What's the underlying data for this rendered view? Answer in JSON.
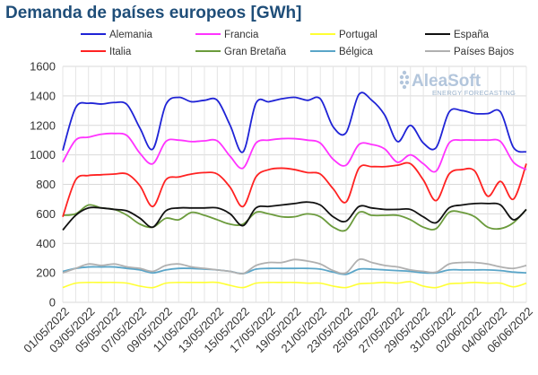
{
  "chart_data": {
    "type": "line",
    "title": "Demanda de países europeos [GWh]",
    "xlabel": "",
    "ylabel": "",
    "ylim": [
      0,
      1600
    ],
    "yticks": [
      0,
      200,
      400,
      600,
      800,
      1000,
      1200,
      1400,
      1600
    ],
    "grid": true,
    "legend_position": "top",
    "x": [
      "01/05/2022",
      "02/05/2022",
      "03/05/2022",
      "04/05/2022",
      "05/05/2022",
      "06/05/2022",
      "07/05/2022",
      "08/05/2022",
      "09/05/2022",
      "10/05/2022",
      "11/05/2022",
      "12/05/2022",
      "13/05/2022",
      "14/05/2022",
      "15/05/2022",
      "16/05/2022",
      "17/05/2022",
      "18/05/2022",
      "19/05/2022",
      "20/05/2022",
      "21/05/2022",
      "22/05/2022",
      "23/05/2022",
      "24/05/2022",
      "25/05/2022",
      "26/05/2022",
      "27/05/2022",
      "28/05/2022",
      "29/05/2022",
      "30/05/2022",
      "31/05/2022",
      "01/06/2022",
      "02/06/2022",
      "03/06/2022",
      "04/06/2022",
      "05/06/2022",
      "06/06/2022"
    ],
    "x_tick_labels": [
      "01/05/2022",
      "03/05/2022",
      "05/05/2022",
      "07/05/2022",
      "09/05/2022",
      "11/05/2022",
      "13/05/2022",
      "15/05/2022",
      "17/05/2022",
      "19/05/2022",
      "21/05/2022",
      "23/05/2022",
      "25/05/2022",
      "27/05/2022",
      "29/05/2022",
      "31/05/2022",
      "02/06/2022",
      "04/06/2022",
      "06/06/2022"
    ],
    "series": [
      {
        "name": "Alemania",
        "color": "#1f23d6",
        "values": [
          1030,
          1320,
          1350,
          1345,
          1355,
          1340,
          1180,
          1040,
          1340,
          1390,
          1360,
          1370,
          1370,
          1200,
          1020,
          1350,
          1360,
          1380,
          1390,
          1370,
          1380,
          1190,
          1150,
          1410,
          1370,
          1270,
          1090,
          1200,
          1080,
          1050,
          1290,
          1300,
          1280,
          1280,
          1290,
          1050,
          1020
        ]
      },
      {
        "name": "Francia",
        "color": "#ff33ff",
        "values": [
          950,
          1100,
          1120,
          1140,
          1145,
          1130,
          1010,
          940,
          1090,
          1100,
          1090,
          1095,
          1095,
          990,
          910,
          1080,
          1100,
          1110,
          1110,
          1100,
          1080,
          970,
          930,
          1070,
          1070,
          1040,
          950,
          1000,
          940,
          890,
          1080,
          1100,
          1100,
          1100,
          1090,
          950,
          900
        ]
      },
      {
        "name": "Portugal",
        "color": "#ffff33",
        "values": [
          100,
          130,
          135,
          135,
          135,
          130,
          110,
          100,
          130,
          135,
          135,
          135,
          135,
          115,
          100,
          130,
          135,
          135,
          135,
          130,
          130,
          110,
          100,
          125,
          130,
          135,
          130,
          140,
          110,
          100,
          125,
          130,
          135,
          130,
          130,
          105,
          130
        ]
      },
      {
        "name": "España",
        "color": "#111111",
        "values": [
          490,
          590,
          640,
          640,
          630,
          620,
          570,
          510,
          620,
          640,
          640,
          640,
          640,
          600,
          520,
          640,
          650,
          660,
          670,
          680,
          660,
          580,
          550,
          650,
          640,
          630,
          630,
          630,
          580,
          540,
          640,
          660,
          670,
          670,
          660,
          560,
          630
        ]
      },
      {
        "name": "Italia",
        "color": "#ff2222",
        "values": [
          580,
          830,
          860,
          865,
          870,
          870,
          790,
          650,
          830,
          850,
          870,
          880,
          870,
          780,
          650,
          850,
          900,
          910,
          900,
          880,
          870,
          770,
          680,
          910,
          920,
          920,
          930,
          940,
          830,
          690,
          870,
          900,
          890,
          720,
          820,
          700,
          940
        ]
      },
      {
        "name": "Gran Bretaña",
        "color": "#6b9b3c",
        "values": [
          590,
          600,
          660,
          640,
          630,
          590,
          530,
          510,
          570,
          560,
          610,
          590,
          560,
          530,
          530,
          610,
          600,
          580,
          580,
          600,
          580,
          510,
          490,
          610,
          590,
          590,
          590,
          560,
          510,
          500,
          610,
          610,
          580,
          510,
          500,
          540,
          630
        ]
      },
      {
        "name": "Bélgica",
        "color": "#5aa5c8",
        "values": [
          210,
          230,
          240,
          240,
          240,
          230,
          220,
          200,
          220,
          230,
          230,
          225,
          220,
          210,
          195,
          225,
          230,
          230,
          230,
          230,
          225,
          205,
          190,
          225,
          225,
          220,
          215,
          210,
          200,
          200,
          220,
          220,
          220,
          220,
          215,
          205,
          200
        ]
      },
      {
        "name": "Países Bajos",
        "color": "#b0b0b0",
        "values": [
          200,
          230,
          260,
          250,
          260,
          240,
          230,
          210,
          250,
          260,
          240,
          230,
          220,
          210,
          195,
          250,
          270,
          270,
          290,
          280,
          260,
          215,
          200,
          290,
          270,
          250,
          240,
          220,
          210,
          205,
          260,
          270,
          270,
          260,
          240,
          230,
          250
        ]
      }
    ]
  },
  "watermark": {
    "brand": "AleaSoft",
    "tagline": "ENERGY FORECASTING"
  }
}
